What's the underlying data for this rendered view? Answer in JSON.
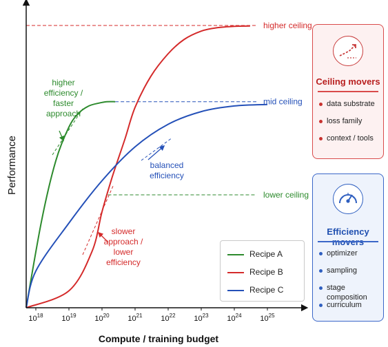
{
  "colors": {
    "recipe_a": "#2c8a2c",
    "recipe_b": "#d42a2a",
    "recipe_c": "#2450b8",
    "ceiling_accent": "#d94a4a",
    "efficiency_accent": "#3a66c8"
  },
  "chart_data": {
    "type": "line",
    "title": "",
    "xlabel": "Compute / training budget",
    "ylabel": "Performance",
    "x_scale": "log",
    "x_ticks": [
      "10^18",
      "10^19",
      "10^20",
      "10^21",
      "10^22",
      "10^23",
      "10^24",
      "10^25"
    ],
    "x_tick_exponents": [
      18,
      19,
      20,
      21,
      22,
      23,
      24,
      25
    ],
    "xlim": [
      1e+18,
      1e+25
    ],
    "ylim": [
      0,
      1
    ],
    "y_ticks_shown": false,
    "grid": false,
    "legend_position": "bottom-right",
    "series": [
      {
        "name": "Recipe A",
        "color": "#2c8a2c",
        "x": [
          1.2e+17,
          1.5e+18,
          4e+18,
          1e+19,
          2e+19,
          4e+19,
          8e+19,
          1.4e+20,
          2.5e+20
        ],
        "y": [
          0.0,
          0.31,
          0.52,
          0.64,
          0.69,
          0.715,
          0.725,
          0.73,
          0.73
        ]
      },
      {
        "name": "Recipe B",
        "color": "#d42a2a",
        "x": [
          1.2e+17,
          1e+19,
          5e+19,
          1e+20,
          2e+20,
          5e+20,
          1e+21,
          3e+21,
          1e+22,
          3e+22,
          1e+23,
          3e+23,
          1e+24,
          3e+24
        ],
        "y": [
          0.0,
          0.06,
          0.2,
          0.34,
          0.46,
          0.6,
          0.71,
          0.82,
          0.9,
          0.95,
          0.98,
          0.992,
          0.997,
          0.998
        ]
      },
      {
        "name": "Recipe C",
        "color": "#2450b8",
        "x": [
          1.2e+17,
          1e+18,
          1e+19,
          1e+20,
          1e+21,
          1e+22,
          1e+23,
          1e+24,
          1e+25
        ],
        "y": [
          0.0,
          0.13,
          0.3,
          0.45,
          0.57,
          0.65,
          0.695,
          0.715,
          0.72
        ]
      }
    ],
    "reference_lines": [
      {
        "label": "higher ceiling",
        "y": 1.0,
        "from_x": 1e+18,
        "color": "#d42a2a"
      },
      {
        "label": "mid ceiling",
        "y": 0.73,
        "from_x": 2.5e+20,
        "color": "#2450b8"
      },
      {
        "label": "lower ceiling",
        "y": 0.4,
        "from_x": 1.5e+20,
        "color": "#2c8a2c"
      }
    ],
    "annotations": [
      {
        "text_lines": [
          "higher",
          "efficiency /",
          "faster",
          "approach"
        ],
        "color": "#2c8a2c"
      },
      {
        "text_lines": [
          "balanced",
          "efficiency"
        ],
        "color": "#2450b8"
      },
      {
        "text_lines": [
          "slower",
          "approach /",
          "lower",
          "efficiency"
        ],
        "color": "#d42a2a"
      }
    ]
  },
  "legend": {
    "entries": [
      {
        "label": "Recipe A",
        "color": "#2c8a2c"
      },
      {
        "label": "Recipe B",
        "color": "#d42a2a"
      },
      {
        "label": "Recipe C",
        "color": "#2450b8"
      }
    ]
  },
  "ceiling_panel": {
    "title": "Ceiling movers",
    "icon": "trend-up-arrow-icon",
    "items": [
      "data substrate",
      "loss family",
      "context / tools"
    ]
  },
  "efficiency_panel": {
    "title": "Efficiency movers",
    "icon": "speedometer-gauge-icon",
    "items": [
      "optimizer",
      "sampling",
      "stage composition",
      "curriculum"
    ]
  }
}
